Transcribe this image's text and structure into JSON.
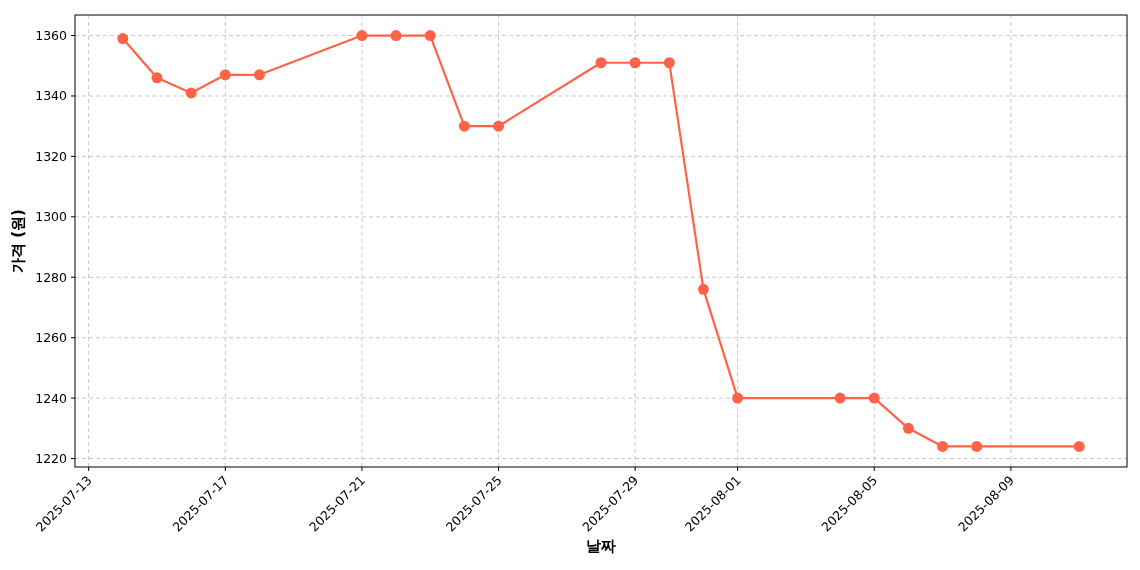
{
  "chart_data": {
    "type": "line",
    "xlabel": "날짜",
    "ylabel": "가격 (원)",
    "x": [
      "2025-07-14",
      "2025-07-15",
      "2025-07-16",
      "2025-07-17",
      "2025-07-18",
      "2025-07-21",
      "2025-07-22",
      "2025-07-23",
      "2025-07-24",
      "2025-07-25",
      "2025-07-28",
      "2025-07-29",
      "2025-07-30",
      "2025-07-31",
      "2025-08-01",
      "2025-08-04",
      "2025-08-05",
      "2025-08-06",
      "2025-08-07",
      "2025-08-08",
      "2025-08-11"
    ],
    "series": [
      {
        "color": "#ff6347",
        "values": [
          1359,
          1346,
          1341,
          1347,
          1347,
          1360,
          1360,
          1360,
          1330,
          1330,
          1351,
          1351,
          1351,
          1276,
          1240,
          1240,
          1240,
          1230,
          1224,
          1224,
          1224
        ]
      }
    ],
    "xlim": [
      "2025-07-12T14:24",
      "2025-08-12T09:36"
    ],
    "xticks": [
      "2025-07-13",
      "2025-07-17",
      "2025-07-21",
      "2025-07-25",
      "2025-07-29",
      "2025-08-01",
      "2025-08-05",
      "2025-08-09"
    ],
    "ylim": [
      1217.2,
      1366.8
    ],
    "yticks": [
      1220,
      1240,
      1260,
      1280,
      1300,
      1320,
      1340,
      1360
    ],
    "grid": true,
    "marker": "circle",
    "line_style": "solid"
  }
}
